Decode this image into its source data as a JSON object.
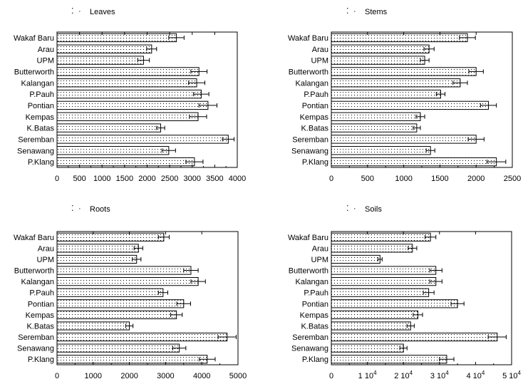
{
  "chart_data": [
    {
      "type": "bar",
      "orientation": "horizontal",
      "title": "Leaves",
      "legend_placement": "top-left",
      "grid": false,
      "categories": [
        "Wakaf Baru",
        "Arau",
        "UPM",
        "Butterworth",
        "Kalangan",
        "P.Pauh",
        "Pontian",
        "Kempas",
        "K.Batas",
        "Seremban",
        "Senawang",
        "P.Klang"
      ],
      "values": [
        2650,
        2100,
        1920,
        3150,
        3100,
        3200,
        3350,
        3130,
        2300,
        3800,
        2480,
        3050
      ],
      "errors": [
        170,
        110,
        130,
        180,
        180,
        170,
        200,
        190,
        90,
        130,
        150,
        190
      ],
      "xlim": [
        0,
        4000
      ],
      "xticks": [
        "0",
        "500",
        "1000",
        "1500",
        "2000",
        "2500",
        "3000",
        "3500",
        "4000"
      ],
      "tick_values": [
        0,
        500,
        1000,
        1500,
        2000,
        2500,
        3000,
        3500,
        4000
      ]
    },
    {
      "type": "bar",
      "orientation": "horizontal",
      "title": "Stems",
      "legend_placement": "top-left",
      "grid": false,
      "categories": [
        "Wakaf Baru",
        "Arau",
        "UPM",
        "Butterworth",
        "Kalangan",
        "P.Pauh",
        "Pontian",
        "Kempas",
        "K.Batas",
        "Seremban",
        "Senawang",
        "P.Klang"
      ],
      "values": [
        1880,
        1350,
        1290,
        2000,
        1780,
        1510,
        2170,
        1230,
        1180,
        2000,
        1370,
        2280
      ],
      "errors": [
        110,
        70,
        60,
        100,
        100,
        60,
        110,
        60,
        50,
        110,
        60,
        130
      ],
      "xlim": [
        0,
        2500
      ],
      "xticks": [
        "0",
        "500",
        "1000",
        "1500",
        "2000",
        "2500"
      ],
      "tick_values": [
        0,
        500,
        1000,
        1500,
        2000,
        2500
      ]
    },
    {
      "type": "bar",
      "orientation": "horizontal",
      "title": "Roots",
      "legend_placement": "top-left",
      "grid": false,
      "categories": [
        "Wakaf Baru",
        "Arau",
        "UPM",
        "Butterworth",
        "Kalangan",
        "P.Pauh",
        "Pontian",
        "Kempas",
        "K.Batas",
        "Seremban",
        "Senawang",
        "P.Klang"
      ],
      "values": [
        2950,
        2250,
        2200,
        3700,
        3900,
        2930,
        3500,
        3300,
        2000,
        4700,
        3380,
        4150
      ],
      "errors": [
        150,
        120,
        120,
        200,
        200,
        130,
        190,
        160,
        100,
        250,
        180,
        220
      ],
      "xlim": [
        0,
        5000
      ],
      "xticks": [
        "0",
        "1000",
        "2000",
        "3000",
        "4000",
        "5000"
      ],
      "tick_values": [
        0,
        1000,
        2000,
        3000,
        4000,
        5000
      ]
    },
    {
      "type": "bar",
      "orientation": "horizontal",
      "title": "Soils",
      "legend_placement": "top-left",
      "grid": false,
      "categories": [
        "Wakaf Baru",
        "Arau",
        "UPM",
        "Butterworth",
        "Kalangan",
        "P.Pauh",
        "Pontian",
        "Kempas",
        "K.Batas",
        "Seremban",
        "Senawang",
        "P.Klang"
      ],
      "values": [
        27500,
        22500,
        13500,
        29000,
        29000,
        27000,
        35000,
        24000,
        22000,
        46000,
        20000,
        32000
      ],
      "errors": [
        1500,
        1200,
        600,
        1700,
        1700,
        1500,
        1800,
        1300,
        1000,
        2500,
        1000,
        2000
      ],
      "xlim": [
        0,
        50000
      ],
      "xticks": [
        "0",
        "1 10⁴",
        "2 10⁴",
        "3 10⁴",
        "4 10⁴",
        "5 10⁴"
      ],
      "tick_values": [
        0,
        10000,
        20000,
        30000,
        40000,
        50000
      ]
    }
  ]
}
